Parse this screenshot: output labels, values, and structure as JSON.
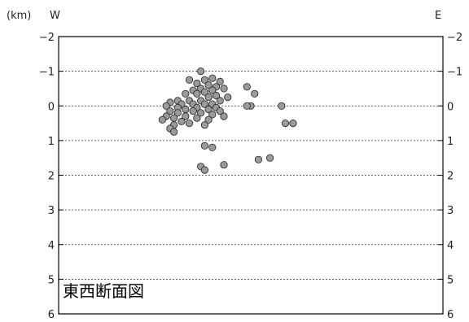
{
  "chart_data": {
    "type": "scatter",
    "unit_label": "(km)",
    "west_label": "W",
    "east_label": "E",
    "title": "東西断面図",
    "ylim": [
      -2,
      6
    ],
    "y_inverted": true,
    "y_ticks": [
      "−2",
      "−1",
      "0",
      "1",
      "2",
      "3",
      "4",
      "5",
      "6"
    ],
    "y_tick_values": [
      -2,
      -1,
      0,
      1,
      2,
      3,
      4,
      5,
      6
    ],
    "gridlines": "dotted at each integer depth",
    "xlim": [
      0,
      100
    ],
    "x_note": "horizontal position along W–E section, relative 0–100",
    "marker_color": "#9a9a9a",
    "points": [
      [
        37,
        -1.0
      ],
      [
        40,
        -0.8
      ],
      [
        38,
        -0.75
      ],
      [
        42,
        -0.7
      ],
      [
        34,
        -0.75
      ],
      [
        36,
        -0.65
      ],
      [
        39,
        -0.6
      ],
      [
        41,
        -0.55
      ],
      [
        37,
        -0.5
      ],
      [
        43,
        -0.5
      ],
      [
        35,
        -0.45
      ],
      [
        40,
        -0.45
      ],
      [
        38,
        -0.4
      ],
      [
        33,
        -0.35
      ],
      [
        36,
        -0.35
      ],
      [
        41,
        -0.3
      ],
      [
        39,
        -0.25
      ],
      [
        44,
        -0.25
      ],
      [
        31,
        -0.15
      ],
      [
        34,
        -0.15
      ],
      [
        37,
        -0.15
      ],
      [
        42,
        -0.15
      ],
      [
        29,
        -0.1
      ],
      [
        32,
        -0.05
      ],
      [
        35,
        -0.05
      ],
      [
        38,
        -0.05
      ],
      [
        40,
        -0.05
      ],
      [
        28,
        0.0
      ],
      [
        31,
        0.05
      ],
      [
        36,
        0.05
      ],
      [
        41,
        0.05
      ],
      [
        33,
        0.1
      ],
      [
        39,
        0.1
      ],
      [
        29,
        0.15
      ],
      [
        35,
        0.15
      ],
      [
        42,
        0.15
      ],
      [
        31,
        0.2
      ],
      [
        37,
        0.2
      ],
      [
        40,
        0.25
      ],
      [
        28,
        0.3
      ],
      [
        33,
        0.3
      ],
      [
        43,
        0.3
      ],
      [
        30,
        0.35
      ],
      [
        36,
        0.35
      ],
      [
        39,
        0.4
      ],
      [
        32,
        0.45
      ],
      [
        27,
        0.4
      ],
      [
        34,
        0.5
      ],
      [
        30,
        0.55
      ],
      [
        38,
        0.55
      ],
      [
        29,
        0.65
      ],
      [
        30,
        0.75
      ],
      [
        49,
        -0.55
      ],
      [
        51,
        -0.35
      ],
      [
        50,
        0.0
      ],
      [
        49,
        0.0
      ],
      [
        58,
        0.0
      ],
      [
        59,
        0.5
      ],
      [
        61,
        0.5
      ],
      [
        38,
        1.15
      ],
      [
        40,
        1.2
      ],
      [
        52,
        1.55
      ],
      [
        55,
        1.5
      ],
      [
        43,
        1.7
      ],
      [
        37,
        1.75
      ],
      [
        38,
        1.85
      ]
    ]
  }
}
